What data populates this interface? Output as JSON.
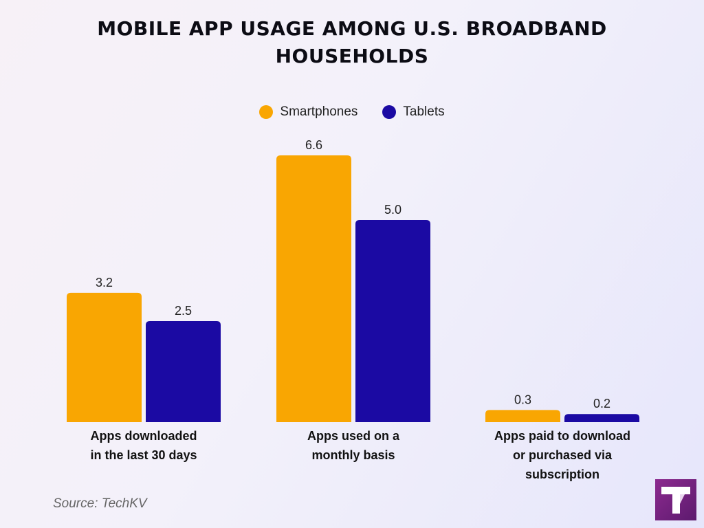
{
  "chart_data": {
    "type": "bar",
    "title": "MOBILE APP USAGE AMONG U.S. BROADBAND HOUSEHOLDS",
    "title_lines": [
      "MOBILE APP USAGE AMONG U.S. BROADBAND",
      "HOUSEHOLDS"
    ],
    "categories": [
      "Apps downloaded in the last 30 days",
      "Apps used on a monthly basis",
      "Apps paid to download or purchased via subscription"
    ],
    "category_lines": [
      [
        "Apps downloaded",
        "in the last 30 days"
      ],
      [
        "Apps used on a",
        "monthly basis"
      ],
      [
        "Apps paid to download",
        "or purchased via",
        "subscription"
      ]
    ],
    "series": [
      {
        "name": "Smartphones",
        "color": "#f9a602",
        "values": [
          3.2,
          6.6,
          0.3
        ],
        "labels": [
          "3.2",
          "6.6",
          "0.3"
        ]
      },
      {
        "name": "Tablets",
        "color": "#1b0aa3",
        "values": [
          2.5,
          5.0,
          0.2
        ],
        "labels": [
          "2.5",
          "5.0",
          "0.2"
        ]
      }
    ],
    "ylim": [
      0,
      6.6
    ],
    "grid": false,
    "legend_position": "top-center"
  },
  "source": "Source: TechKV",
  "logo_icon": "techkv-logo-icon"
}
